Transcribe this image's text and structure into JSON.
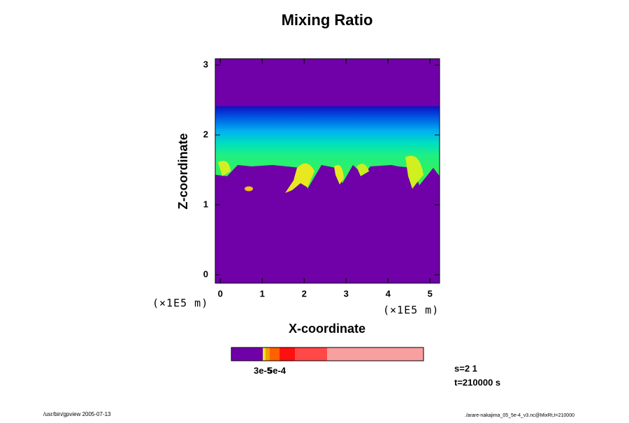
{
  "chart_data": {
    "type": "contour",
    "title": "Mixing Ratio",
    "xlabel": "X-coordinate",
    "ylabel": "Z-coordinate",
    "xunits": "(×1E5 m)",
    "yunits": "(×1E5 m)",
    "xlim": [
      -0.12,
      5.23
    ],
    "ylim": [
      -0.12,
      3.09
    ],
    "xticks": [
      0,
      1,
      2,
      3,
      4,
      5
    ],
    "yticks": [
      0,
      1,
      2,
      3
    ],
    "colorbar_labels": [
      "3e-5",
      "5e-4"
    ],
    "info": [
      "s=2 1",
      "t=210000 s"
    ],
    "footer_left": "/usr/bin/gpview 2005-07-13",
    "footer_right": "./arare-nakajima_05_5e-4_v3.nc@MixRt,t=210000"
  }
}
